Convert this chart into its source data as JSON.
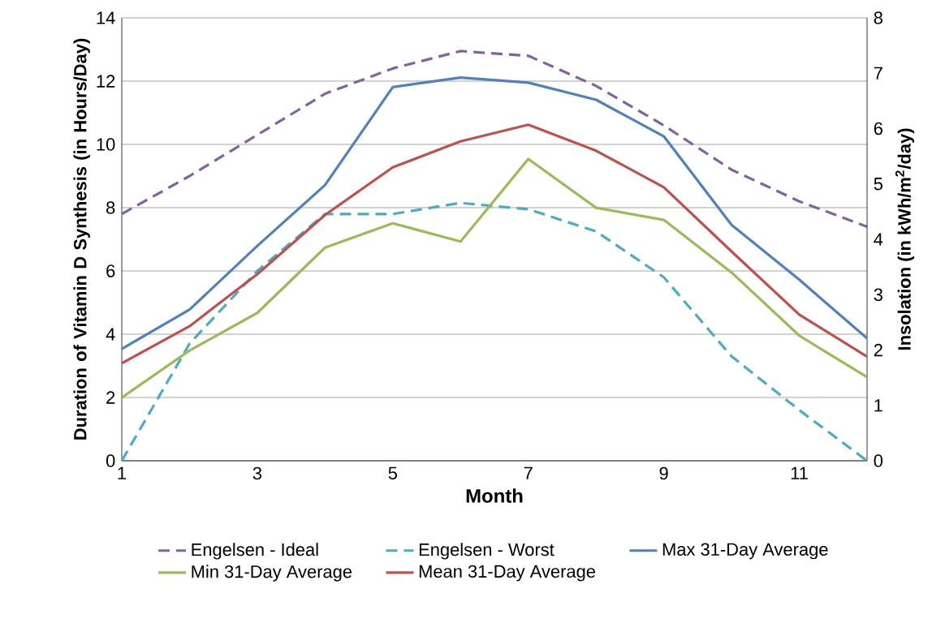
{
  "chart_data": {
    "type": "line",
    "xlabel": "Month",
    "ylabel": "Duration of Vitamin D Synthesis (in Hours/Day)",
    "y2label": "Insolation (in kWh/m$^{2}$/day)",
    "x": [
      1,
      2,
      3,
      4,
      5,
      6,
      7,
      8,
      9,
      10,
      11,
      12
    ],
    "xlim": [
      1,
      12
    ],
    "xticks": [
      1,
      3,
      5,
      7,
      9,
      11
    ],
    "ylim": [
      0,
      14
    ],
    "yticks": [
      0,
      2,
      4,
      6,
      8,
      10,
      12,
      14
    ],
    "y2lim": [
      0,
      8
    ],
    "y2ticks": [
      0,
      1,
      2,
      3,
      4,
      5,
      6,
      7,
      8
    ],
    "grid": "y",
    "legend": "bottom",
    "marker": "none",
    "series": [
      {
        "name": "Engelsen - Ideal",
        "color": "#8064a2",
        "line_style": "dashed",
        "values": [
          7.8,
          9.0,
          10.3,
          11.6,
          12.4,
          12.95,
          12.8,
          11.85,
          10.6,
          9.2,
          8.2,
          7.4
        ]
      },
      {
        "name": "Engelsen - Worst",
        "color": "#4bacc6",
        "line_style": "dashed",
        "values": [
          0,
          3.7,
          6.0,
          7.8,
          7.8,
          8.15,
          7.95,
          7.25,
          5.8,
          3.3,
          1.6,
          0
        ]
      },
      {
        "name": "Max 31-Day Average",
        "color": "#4f81bd",
        "line_style": "solid",
        "axis": "y2",
        "values": [
          2.02,
          2.73,
          3.88,
          4.98,
          6.75,
          6.92,
          6.83,
          6.52,
          5.86,
          4.26,
          3.27,
          2.21
        ]
      },
      {
        "name": "Min 31-Day Average",
        "color": "#9bbb59",
        "line_style": "solid",
        "axis": "y2",
        "values": [
          1.14,
          1.99,
          2.67,
          3.85,
          4.29,
          3.96,
          5.45,
          4.57,
          4.35,
          3.4,
          2.26,
          1.51
        ]
      },
      {
        "name": "Mean 31-Day Average",
        "color": "#c0504d",
        "line_style": "solid",
        "axis": "y2",
        "values": [
          1.76,
          2.43,
          3.37,
          4.44,
          5.3,
          5.77,
          6.07,
          5.6,
          4.94,
          3.78,
          2.64,
          1.88
        ]
      }
    ]
  }
}
